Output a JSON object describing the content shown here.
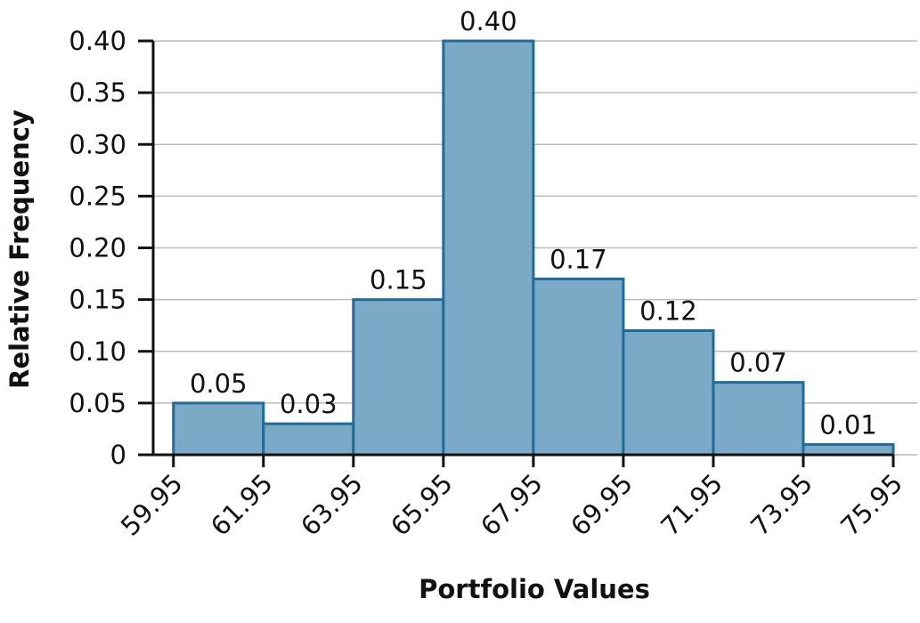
{
  "chart_data": {
    "type": "histogram",
    "x_label": "Portfolio Values",
    "y_label": "Relative Frequency",
    "bins": [
      59.95,
      61.95,
      63.95,
      65.95,
      67.95,
      69.95,
      71.95,
      73.95,
      75.95
    ],
    "values": [
      0.05,
      0.03,
      0.15,
      0.4,
      0.17,
      0.12,
      0.07,
      0.01
    ],
    "value_labels": [
      "0.05",
      "0.03",
      "0.15",
      "0.40",
      "0.17",
      "0.12",
      "0.07",
      "0.01"
    ],
    "color": "#7aaac6",
    "edge_color": "#1f6b99",
    "xlim": [
      59.5,
      75.95
    ],
    "ylim": [
      0,
      0.4
    ],
    "yticks": [
      0,
      0.05,
      {
        "value": 0.1,
        "label": "0.10"
      },
      0.15,
      {
        "value": 0.2,
        "label": "0.20"
      },
      0.25,
      {
        "value": 0.3,
        "label": "0.30"
      },
      0.35,
      {
        "value": 0.4,
        "label": "0.40"
      }
    ],
    "grid": true
  }
}
